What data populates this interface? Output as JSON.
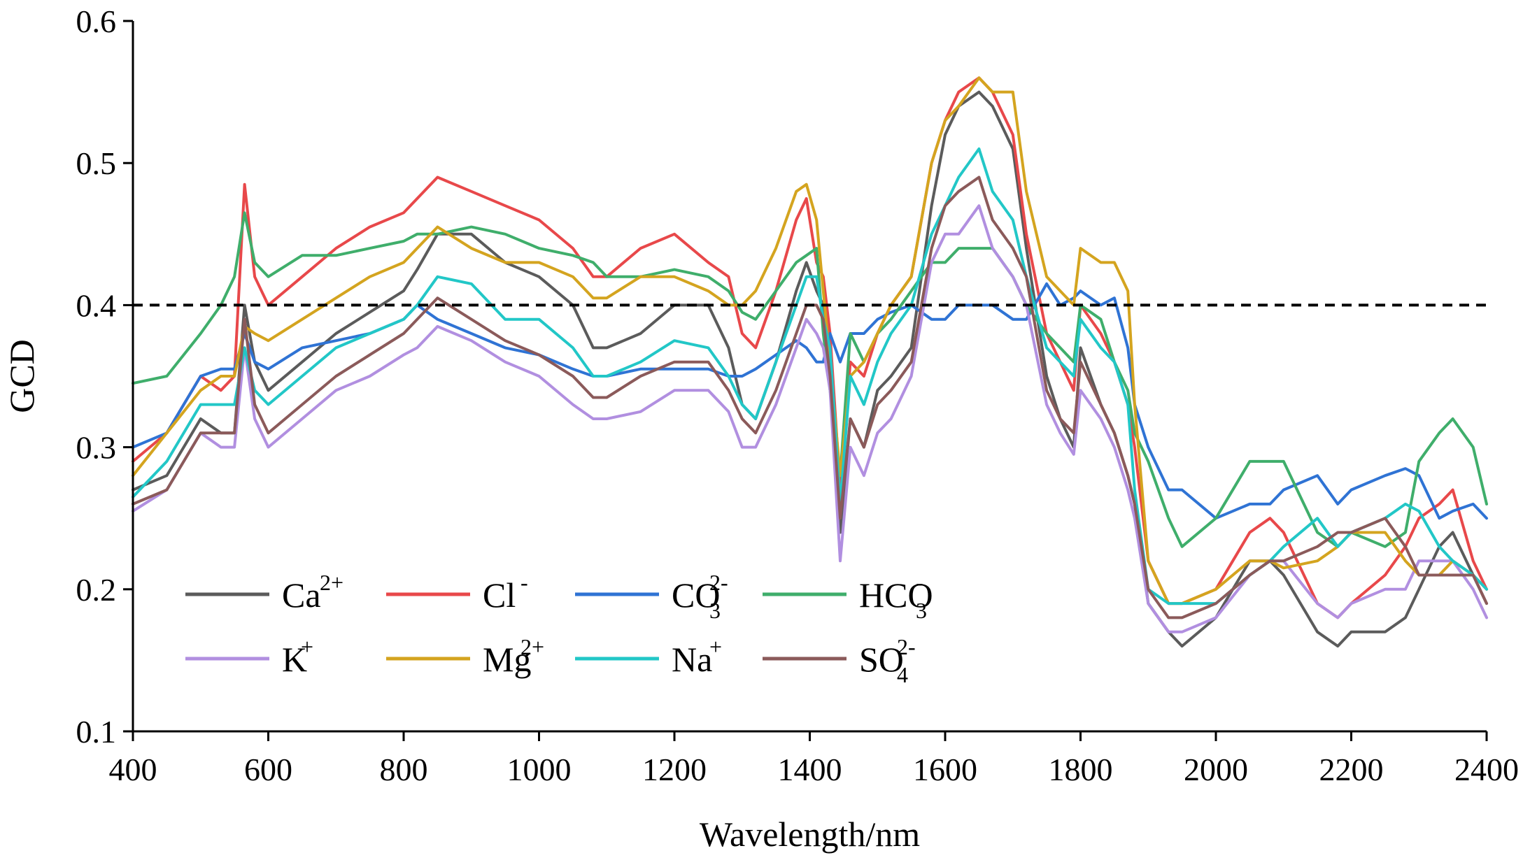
{
  "chart_data": {
    "type": "line",
    "title": "",
    "xlabel": "Wavelength/nm",
    "ylabel": "GCD",
    "xlim": [
      400,
      2400
    ],
    "ylim": [
      0.1,
      0.6
    ],
    "xticks": [
      "400",
      "600",
      "800",
      "1000",
      "1200",
      "1400",
      "1600",
      "1800",
      "2000",
      "2200",
      "2400"
    ],
    "yticks": [
      "0.1",
      "0.2",
      "0.3",
      "0.4",
      "0.5",
      "0.6"
    ],
    "grid": false,
    "legend_position": "lower-left",
    "threshold": {
      "y": 0.4,
      "style": "dashed",
      "color": "#000000"
    },
    "x": [
      400,
      450,
      500,
      530,
      550,
      565,
      580,
      600,
      650,
      700,
      750,
      800,
      820,
      850,
      900,
      950,
      1000,
      1050,
      1080,
      1100,
      1150,
      1200,
      1250,
      1280,
      1300,
      1320,
      1350,
      1380,
      1395,
      1410,
      1420,
      1430,
      1445,
      1460,
      1480,
      1500,
      1520,
      1550,
      1580,
      1600,
      1620,
      1650,
      1670,
      1700,
      1720,
      1750,
      1770,
      1790,
      1800,
      1830,
      1850,
      1870,
      1880,
      1900,
      1930,
      1950,
      2000,
      2050,
      2080,
      2100,
      2150,
      2180,
      2200,
      2250,
      2280,
      2300,
      2330,
      2350,
      2380,
      2400
    ],
    "series": [
      {
        "name": "Ca2+",
        "color": "#5b5b5b",
        "values": [
          0.27,
          0.28,
          0.32,
          0.31,
          0.31,
          0.4,
          0.36,
          0.34,
          0.36,
          0.38,
          0.395,
          0.41,
          0.425,
          0.45,
          0.45,
          0.43,
          0.42,
          0.4,
          0.37,
          0.37,
          0.38,
          0.4,
          0.4,
          0.37,
          0.33,
          0.32,
          0.36,
          0.41,
          0.43,
          0.41,
          0.4,
          0.36,
          0.24,
          0.32,
          0.3,
          0.34,
          0.35,
          0.37,
          0.47,
          0.52,
          0.54,
          0.55,
          0.54,
          0.51,
          0.44,
          0.35,
          0.32,
          0.3,
          0.37,
          0.33,
          0.31,
          0.28,
          0.26,
          0.19,
          0.17,
          0.16,
          0.18,
          0.22,
          0.22,
          0.21,
          0.17,
          0.16,
          0.17,
          0.17,
          0.18,
          0.2,
          0.23,
          0.24,
          0.21,
          0.19
        ]
      },
      {
        "name": "Cl-",
        "color": "#e8484a",
        "values": [
          0.29,
          0.31,
          0.35,
          0.34,
          0.35,
          0.485,
          0.42,
          0.4,
          0.42,
          0.44,
          0.455,
          0.465,
          0.475,
          0.49,
          0.48,
          0.47,
          0.46,
          0.44,
          0.42,
          0.42,
          0.44,
          0.45,
          0.43,
          0.42,
          0.38,
          0.37,
          0.41,
          0.46,
          0.475,
          0.43,
          0.42,
          0.38,
          0.27,
          0.36,
          0.35,
          0.38,
          0.4,
          0.42,
          0.5,
          0.53,
          0.55,
          0.56,
          0.55,
          0.52,
          0.45,
          0.38,
          0.36,
          0.34,
          0.4,
          0.38,
          0.36,
          0.33,
          0.3,
          0.22,
          0.19,
          0.19,
          0.2,
          0.24,
          0.25,
          0.24,
          0.19,
          0.18,
          0.19,
          0.21,
          0.23,
          0.25,
          0.26,
          0.27,
          0.22,
          0.2
        ]
      },
      {
        "name": "CO32-",
        "color": "#2f73d4",
        "values": [
          0.3,
          0.31,
          0.35,
          0.355,
          0.355,
          0.38,
          0.36,
          0.355,
          0.37,
          0.375,
          0.38,
          0.39,
          0.4,
          0.39,
          0.38,
          0.37,
          0.365,
          0.355,
          0.35,
          0.35,
          0.355,
          0.355,
          0.355,
          0.35,
          0.35,
          0.355,
          0.365,
          0.375,
          0.37,
          0.36,
          0.36,
          0.38,
          0.36,
          0.38,
          0.38,
          0.39,
          0.395,
          0.4,
          0.39,
          0.39,
          0.4,
          0.4,
          0.4,
          0.39,
          0.39,
          0.415,
          0.4,
          0.405,
          0.41,
          0.4,
          0.405,
          0.37,
          0.33,
          0.3,
          0.27,
          0.27,
          0.25,
          0.26,
          0.26,
          0.27,
          0.28,
          0.26,
          0.27,
          0.28,
          0.285,
          0.28,
          0.25,
          0.255,
          0.26,
          0.25
        ]
      },
      {
        "name": "HCO3-",
        "color": "#3fae6b",
        "values": [
          0.345,
          0.35,
          0.38,
          0.4,
          0.42,
          0.465,
          0.43,
          0.42,
          0.435,
          0.435,
          0.44,
          0.445,
          0.45,
          0.45,
          0.455,
          0.45,
          0.44,
          0.435,
          0.43,
          0.42,
          0.42,
          0.425,
          0.42,
          0.41,
          0.395,
          0.39,
          0.41,
          0.43,
          0.435,
          0.44,
          0.38,
          0.34,
          0.28,
          0.38,
          0.36,
          0.38,
          0.39,
          0.41,
          0.43,
          0.43,
          0.44,
          0.44,
          0.44,
          0.42,
          0.4,
          0.38,
          0.37,
          0.36,
          0.4,
          0.39,
          0.36,
          0.34,
          0.31,
          0.29,
          0.25,
          0.23,
          0.25,
          0.29,
          0.29,
          0.29,
          0.24,
          0.23,
          0.24,
          0.23,
          0.24,
          0.29,
          0.31,
          0.32,
          0.3,
          0.26
        ]
      },
      {
        "name": "K+",
        "color": "#b18fe0",
        "values": [
          0.255,
          0.27,
          0.31,
          0.3,
          0.3,
          0.37,
          0.32,
          0.3,
          0.32,
          0.34,
          0.35,
          0.365,
          0.37,
          0.385,
          0.375,
          0.36,
          0.35,
          0.33,
          0.32,
          0.32,
          0.325,
          0.34,
          0.34,
          0.325,
          0.3,
          0.3,
          0.33,
          0.37,
          0.39,
          0.38,
          0.37,
          0.34,
          0.22,
          0.3,
          0.28,
          0.31,
          0.32,
          0.35,
          0.43,
          0.45,
          0.45,
          0.47,
          0.44,
          0.42,
          0.4,
          0.33,
          0.31,
          0.295,
          0.34,
          0.32,
          0.3,
          0.27,
          0.25,
          0.19,
          0.17,
          0.17,
          0.18,
          0.21,
          0.22,
          0.22,
          0.19,
          0.18,
          0.19,
          0.2,
          0.2,
          0.22,
          0.22,
          0.22,
          0.2,
          0.18
        ]
      },
      {
        "name": "Mg2+",
        "color": "#d4a41f",
        "values": [
          0.28,
          0.31,
          0.34,
          0.35,
          0.35,
          0.385,
          0.38,
          0.375,
          0.39,
          0.405,
          0.42,
          0.43,
          0.44,
          0.455,
          0.44,
          0.43,
          0.43,
          0.42,
          0.405,
          0.405,
          0.42,
          0.42,
          0.41,
          0.4,
          0.4,
          0.41,
          0.44,
          0.48,
          0.485,
          0.46,
          0.41,
          0.36,
          0.28,
          0.35,
          0.36,
          0.38,
          0.4,
          0.42,
          0.5,
          0.53,
          0.54,
          0.56,
          0.55,
          0.55,
          0.48,
          0.42,
          0.41,
          0.4,
          0.44,
          0.43,
          0.43,
          0.41,
          0.33,
          0.22,
          0.19,
          0.19,
          0.2,
          0.22,
          0.22,
          0.215,
          0.22,
          0.23,
          0.24,
          0.24,
          0.22,
          0.21,
          0.21,
          0.22,
          0.21,
          0.2
        ]
      },
      {
        "name": "Na+",
        "color": "#22c7c7",
        "values": [
          0.265,
          0.29,
          0.33,
          0.33,
          0.33,
          0.37,
          0.34,
          0.33,
          0.35,
          0.37,
          0.38,
          0.39,
          0.4,
          0.42,
          0.415,
          0.39,
          0.39,
          0.37,
          0.35,
          0.35,
          0.36,
          0.375,
          0.37,
          0.35,
          0.33,
          0.32,
          0.36,
          0.4,
          0.42,
          0.42,
          0.39,
          0.37,
          0.26,
          0.35,
          0.33,
          0.36,
          0.38,
          0.4,
          0.45,
          0.47,
          0.49,
          0.51,
          0.48,
          0.46,
          0.42,
          0.37,
          0.36,
          0.35,
          0.39,
          0.37,
          0.36,
          0.33,
          0.27,
          0.2,
          0.19,
          0.19,
          0.19,
          0.21,
          0.22,
          0.23,
          0.25,
          0.23,
          0.24,
          0.25,
          0.26,
          0.255,
          0.23,
          0.22,
          0.21,
          0.2
        ]
      },
      {
        "name": "SO42-",
        "color": "#8b5a5a",
        "values": [
          0.26,
          0.27,
          0.31,
          0.31,
          0.31,
          0.39,
          0.33,
          0.31,
          0.33,
          0.35,
          0.365,
          0.38,
          0.39,
          0.405,
          0.39,
          0.375,
          0.365,
          0.35,
          0.335,
          0.335,
          0.35,
          0.36,
          0.36,
          0.34,
          0.32,
          0.31,
          0.34,
          0.38,
          0.4,
          0.4,
          0.39,
          0.35,
          0.25,
          0.32,
          0.3,
          0.33,
          0.34,
          0.36,
          0.44,
          0.47,
          0.48,
          0.49,
          0.46,
          0.44,
          0.42,
          0.34,
          0.32,
          0.31,
          0.36,
          0.33,
          0.31,
          0.28,
          0.26,
          0.2,
          0.18,
          0.18,
          0.19,
          0.21,
          0.22,
          0.22,
          0.23,
          0.24,
          0.24,
          0.25,
          0.23,
          0.21,
          0.21,
          0.21,
          0.21,
          0.19
        ]
      }
    ]
  },
  "legend": [
    {
      "main": "Ca",
      "sup": "2+",
      "sub": ""
    },
    {
      "main": "Cl",
      "sup": "-",
      "sub": ""
    },
    {
      "main": "CO",
      "sup": "2-",
      "sub": "3"
    },
    {
      "main": "HCO",
      "sup": "-",
      "sub": "3"
    },
    {
      "main": "K",
      "sup": "+",
      "sub": ""
    },
    {
      "main": "Mg",
      "sup": "2+",
      "sub": ""
    },
    {
      "main": "Na",
      "sup": "+",
      "sub": ""
    },
    {
      "main": "SO",
      "sup": "2-",
      "sub": "4"
    }
  ]
}
